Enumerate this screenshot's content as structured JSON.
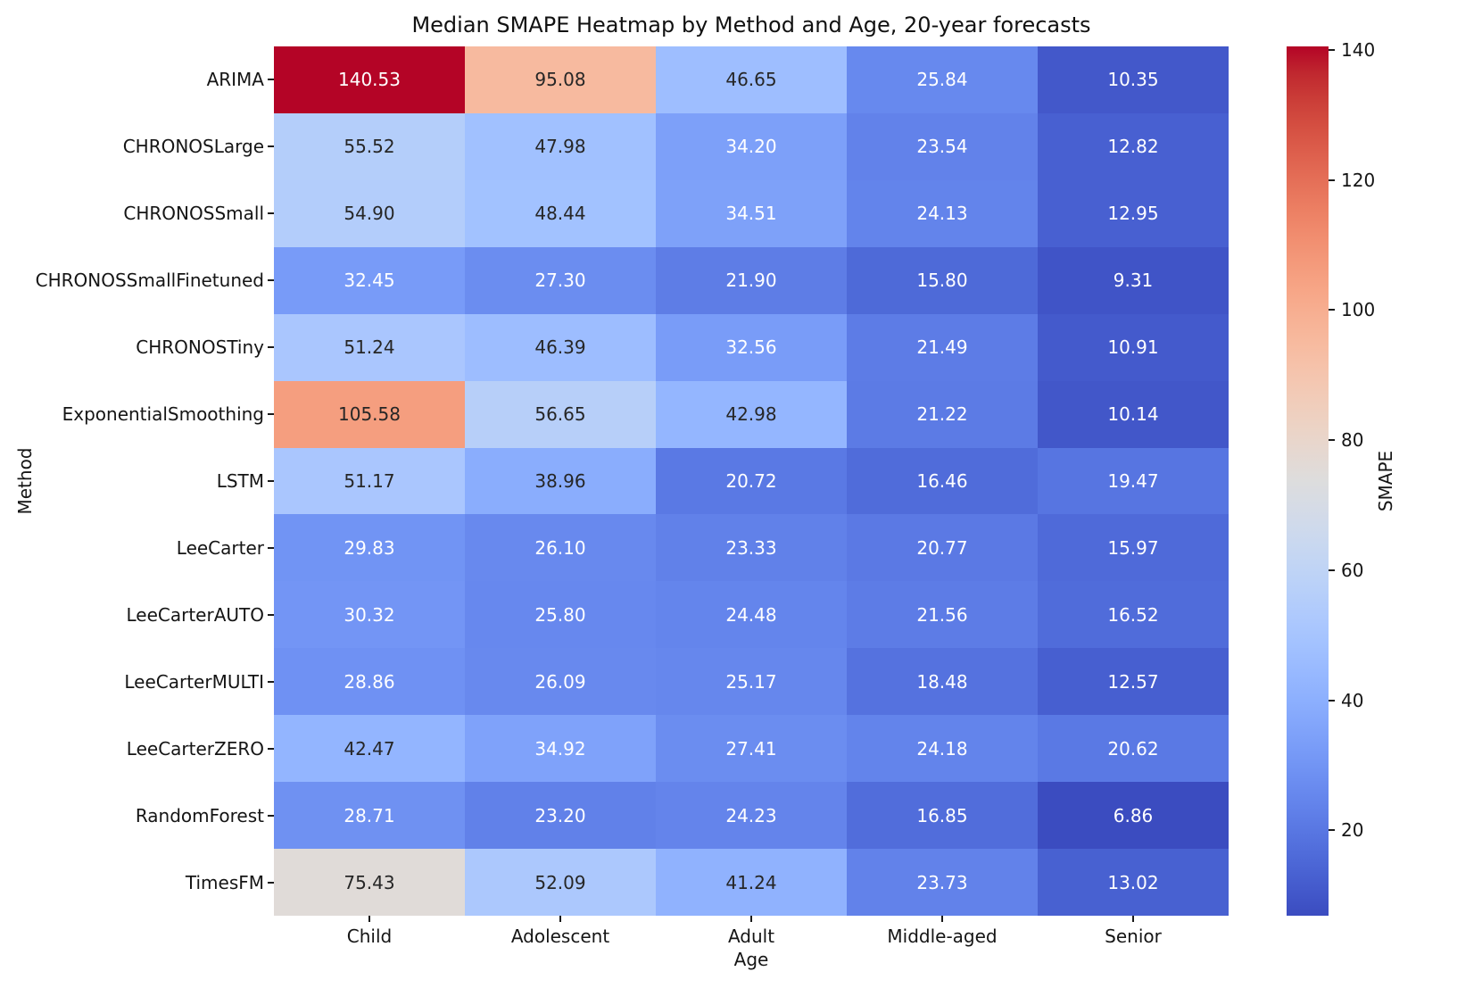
{
  "chart_data": {
    "type": "heatmap",
    "title": "Median SMAPE Heatmap by Method and Age, 20-year forecasts",
    "xlabel": "Age",
    "ylabel": "Method",
    "columns": [
      "Child",
      "Adolescent",
      "Adult",
      "Middle-aged",
      "Senior"
    ],
    "rows": [
      "ARIMA",
      "CHRONOSLarge",
      "CHRONOSSmall",
      "CHRONOSSmallFinetuned",
      "CHRONOSTiny",
      "ExponentialSmoothing",
      "LSTM",
      "LeeCarter",
      "LeeCarterAUTO",
      "LeeCarterMULTI",
      "LeeCarterZERO",
      "RandomForest",
      "TimesFM"
    ],
    "values": [
      [
        140.53,
        95.08,
        46.65,
        25.84,
        10.35
      ],
      [
        55.52,
        47.98,
        34.2,
        23.54,
        12.82
      ],
      [
        54.9,
        48.44,
        34.51,
        24.13,
        12.95
      ],
      [
        32.45,
        27.3,
        21.9,
        15.8,
        9.31
      ],
      [
        51.24,
        46.39,
        32.56,
        21.49,
        10.91
      ],
      [
        105.58,
        56.65,
        42.98,
        21.22,
        10.14
      ],
      [
        51.17,
        38.96,
        20.72,
        16.46,
        19.47
      ],
      [
        29.83,
        26.1,
        23.33,
        20.77,
        15.97
      ],
      [
        30.32,
        25.8,
        24.48,
        21.56,
        16.52
      ],
      [
        28.86,
        26.09,
        25.17,
        18.48,
        12.57
      ],
      [
        42.47,
        34.92,
        27.41,
        24.18,
        20.62
      ],
      [
        28.71,
        23.2,
        24.23,
        16.85,
        6.86
      ],
      [
        75.43,
        52.09,
        41.24,
        23.73,
        13.02
      ]
    ],
    "vmin": 6.86,
    "vmax": 140.53,
    "colormap": "coolwarm",
    "annotation_decimals": 2,
    "grid": false,
    "colorbar": {
      "label": "SMAPE",
      "position": "right",
      "ticks": [
        140,
        120,
        100,
        80,
        60,
        40,
        20
      ]
    },
    "colors": {
      "cmap_low": "#3b4cc0",
      "cmap_mid": "#dddddd",
      "cmap_high": "#b40426",
      "annotation_dark": "#262626",
      "annotation_light": "#ffffff",
      "axis_text": "#151515",
      "background": "#ffffff"
    }
  }
}
